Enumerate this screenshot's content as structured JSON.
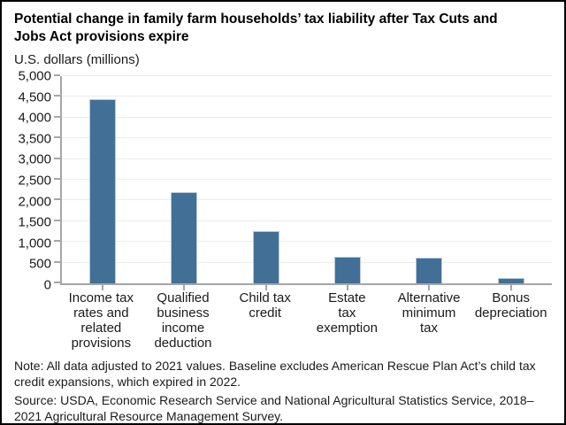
{
  "header": {
    "title": "Potential change in family farm households’ tax liability after Tax Cuts and Jobs Act provisions expire",
    "unit_label": "U.S. dollars (millions)"
  },
  "chart_data": {
    "type": "bar",
    "title": "Potential change in family farm households’ tax liability after Tax Cuts and Jobs Act provisions expire",
    "ylabel": "U.S. dollars (millions)",
    "xlabel": "",
    "categories": [
      [
        "Income tax",
        "rates and",
        "related",
        "provisions"
      ],
      [
        "Qualified",
        "business",
        "income",
        "deduction"
      ],
      [
        "Child tax",
        "credit"
      ],
      [
        "Estate",
        "tax",
        "exemption"
      ],
      [
        "Alternative",
        "minimum",
        "tax"
      ],
      [
        "Bonus",
        "depreciation"
      ]
    ],
    "values": [
      4450,
      2200,
      1260,
      650,
      620,
      130
    ],
    "ylim": [
      0,
      5000
    ],
    "ytick_step": 500,
    "grid": true,
    "legend_position": "none",
    "bar_color": "#426f96",
    "bar_edge_color": "#b7cbdb",
    "axis_color": "#a6a6a6",
    "gridline_color": "#ececec"
  },
  "footer": {
    "note": "Note: All data adjusted to 2021 values. Baseline excludes American Rescue Plan Act’s child tax credit expansions, which expired in 2022.",
    "source": "Source: USDA, Economic Research Service and National Agricultural Statistics Service, 2018–2021 Agricultural Resource Management Survey."
  }
}
